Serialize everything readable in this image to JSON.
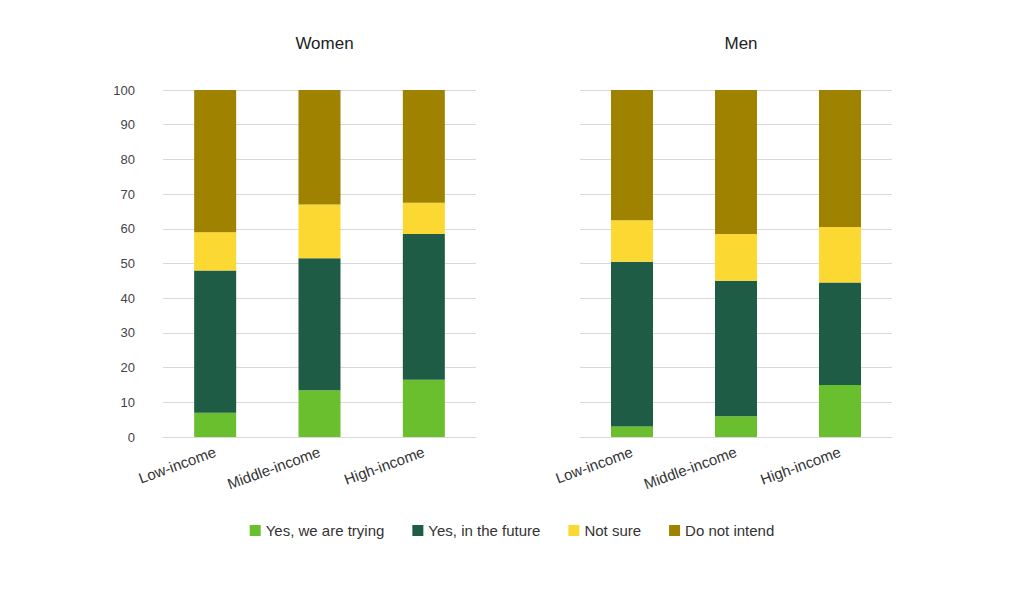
{
  "chart_data": [
    {
      "type": "bar",
      "title": "Women",
      "categories": [
        "Low-income",
        "Middle-income",
        "High-income"
      ],
      "series": [
        {
          "name": "Yes, we are trying",
          "color": "#6abf2e",
          "values": [
            7,
            13.5,
            16.5
          ]
        },
        {
          "name": "Yes, in the future",
          "color": "#1e5c45",
          "values": [
            41,
            38,
            42
          ]
        },
        {
          "name": "Not sure",
          "color": "#fbd832",
          "values": [
            11,
            15.5,
            9
          ]
        },
        {
          "name": "Do not intend",
          "color": "#9e8200",
          "values": [
            41,
            33,
            32.5
          ]
        }
      ],
      "ylim": [
        0,
        100
      ],
      "yticks": [
        0,
        10,
        20,
        30,
        40,
        50,
        60,
        70,
        80,
        90,
        100
      ],
      "grid": true,
      "stacked": true,
      "legend": "bottom"
    },
    {
      "type": "bar",
      "title": "Men",
      "categories": [
        "Low-income",
        "Middle-income",
        "High-income"
      ],
      "series": [
        {
          "name": "Yes, we are trying",
          "color": "#6abf2e",
          "values": [
            3,
            6,
            15
          ]
        },
        {
          "name": "Yes, in the future",
          "color": "#1e5c45",
          "values": [
            47.5,
            39,
            29.5
          ]
        },
        {
          "name": "Not sure",
          "color": "#fbd832",
          "values": [
            12,
            13.5,
            16
          ]
        },
        {
          "name": "Do not intend",
          "color": "#9e8200",
          "values": [
            37.5,
            41.5,
            39.5
          ]
        }
      ],
      "ylim": [
        0,
        100
      ],
      "yticks": [
        0,
        10,
        20,
        30,
        40,
        50,
        60,
        70,
        80,
        90,
        100
      ],
      "grid": true,
      "stacked": true,
      "legend": "bottom",
      "tick_labels": "x"
    }
  ]
}
